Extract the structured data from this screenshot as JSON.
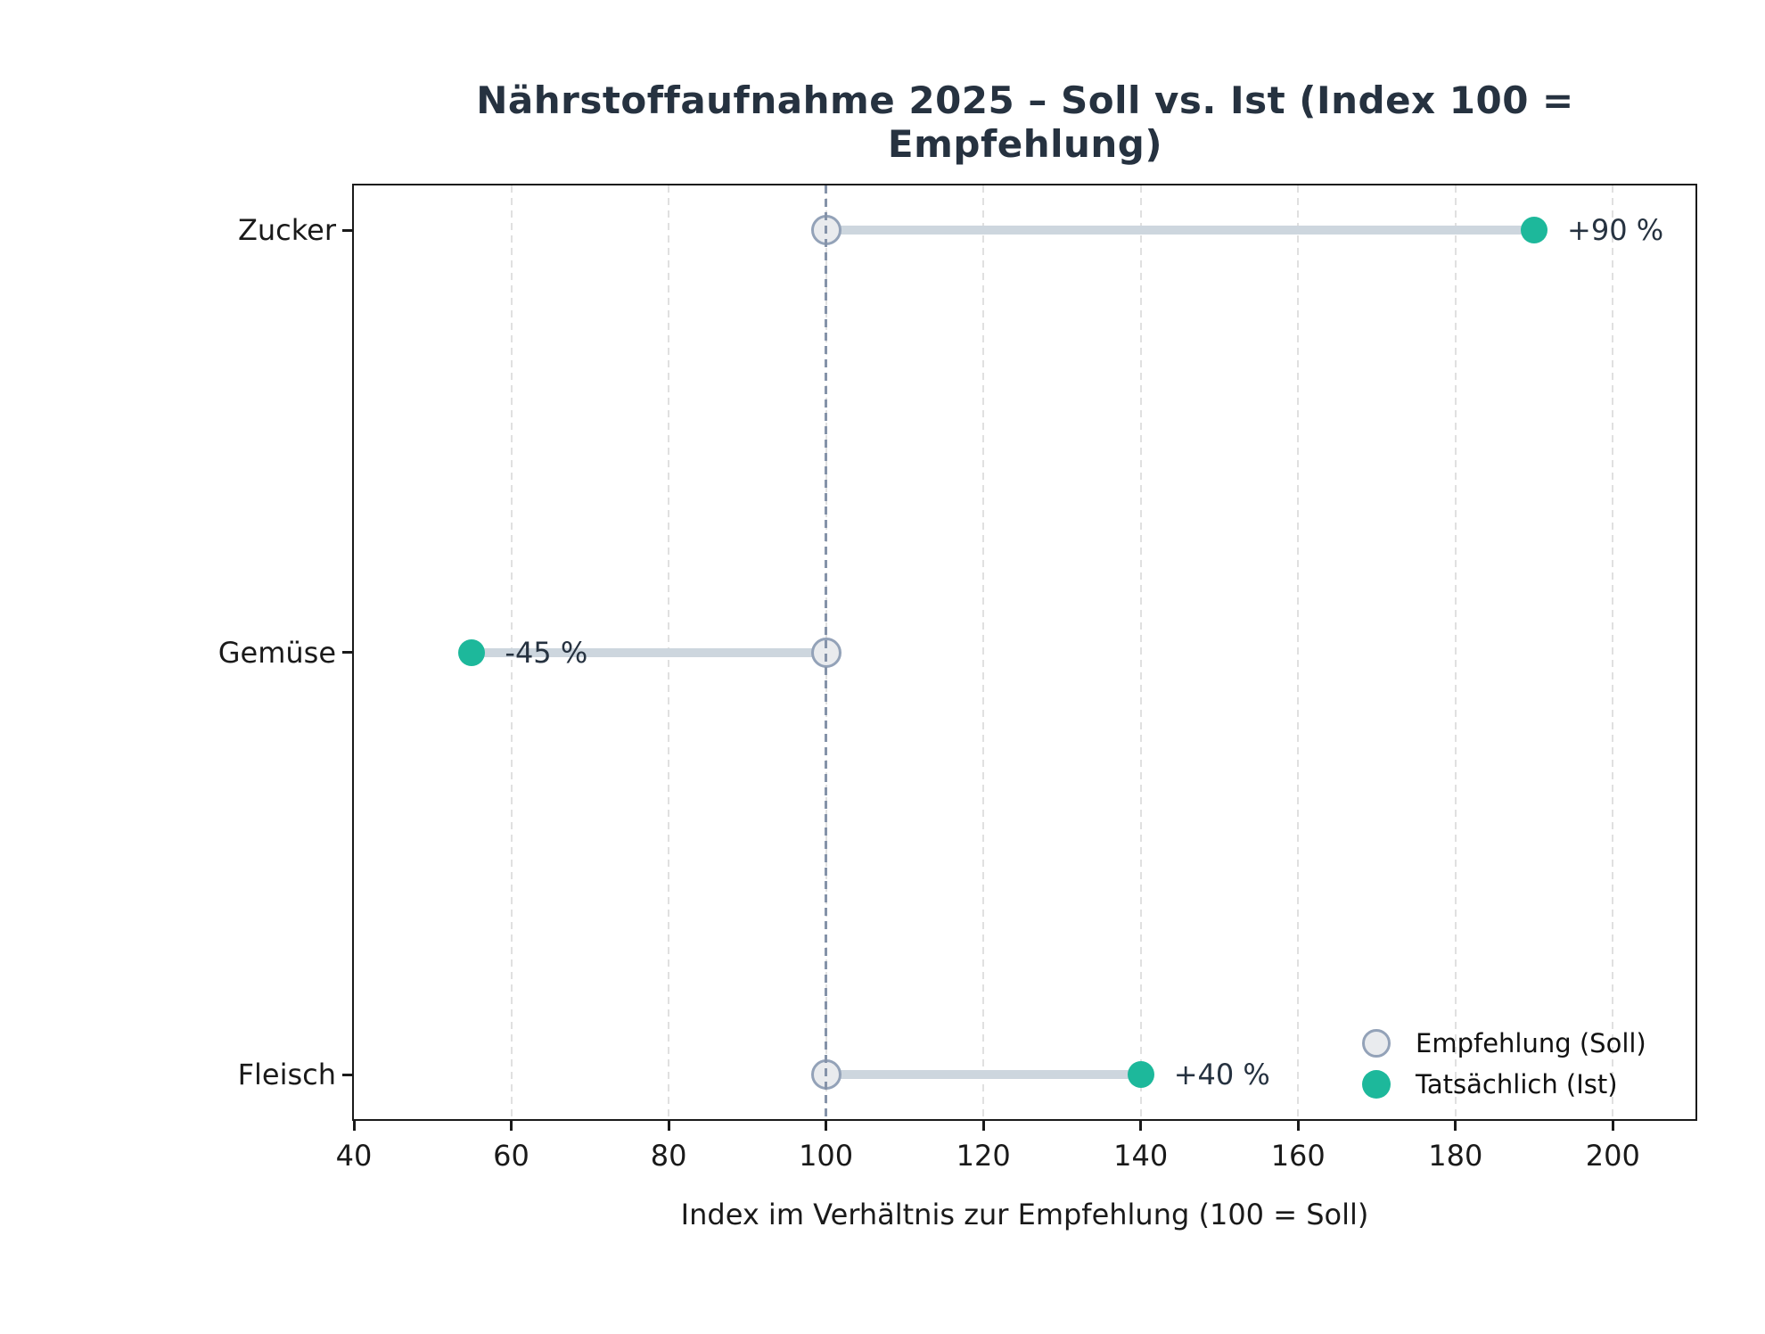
{
  "chart_data": {
    "type": "dumbbell",
    "title": "Nährstoffaufnahme 2025 – Soll vs. Ist (Index 100 = Empfehlung)",
    "xlabel": "Index im Verhältnis zur Empfehlung (100 = Soll)",
    "categories": [
      "Zucker",
      "Gemüse",
      "Fleisch"
    ],
    "series": [
      {
        "name": "Empfehlung (Soll)",
        "marker": "open-circle",
        "values": [
          100,
          100,
          100
        ]
      },
      {
        "name": "Tatsächlich (Ist)",
        "marker": "filled-circle",
        "values": [
          190,
          55,
          140
        ]
      }
    ],
    "delta_labels": [
      "+90 %",
      "-45 %",
      "+40 %"
    ],
    "x_ticks": [
      40,
      60,
      80,
      100,
      120,
      140,
      160,
      180,
      200
    ],
    "xlim": [
      40,
      210.5
    ],
    "reference_line_x": 100,
    "grid": "vertical dashed",
    "legend_position": "lower right",
    "colors": {
      "ist_fill": "#1db89b",
      "soll_fill": "#e9ebee",
      "soll_border": "#93a2b8",
      "connector": "#cdd6de",
      "reference_line": "#8593a9",
      "gridline": "#e0e0e0",
      "spine": "#1a1a1a",
      "title_text": "#263240",
      "delta_text": "#263240",
      "axis_text": "#1a1a1a"
    }
  }
}
